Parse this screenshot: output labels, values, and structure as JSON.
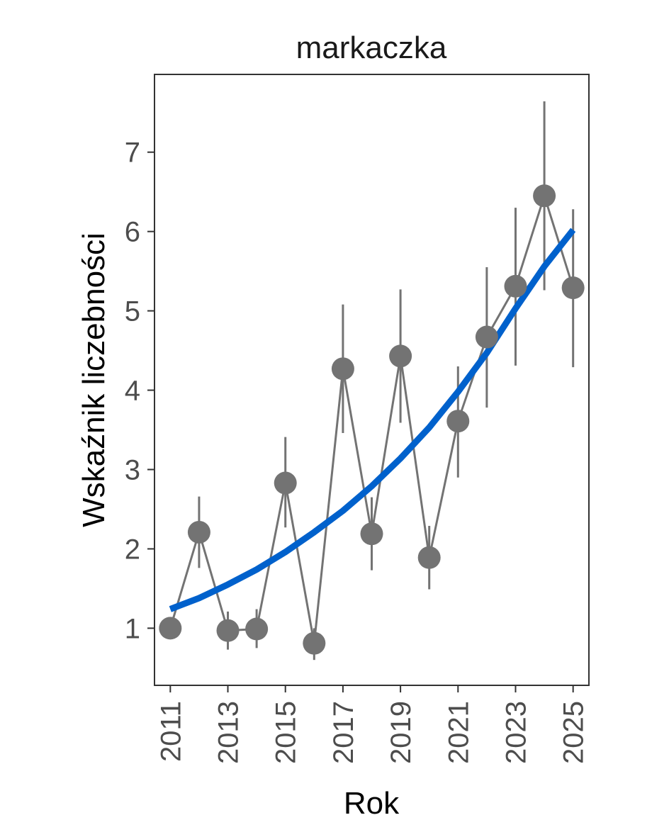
{
  "chart_data": {
    "type": "line",
    "title": "markaczka",
    "xlabel": "Rok",
    "ylabel": "Wskaźnik liczebności",
    "xlim": [
      2010.45,
      2025.55
    ],
    "ylim": [
      0.28,
      7.98
    ],
    "x_ticks": [
      "2011",
      "2013",
      "2015",
      "2017",
      "2019",
      "2021",
      "2023",
      "2025"
    ],
    "y_ticks": [
      "1",
      "2",
      "3",
      "4",
      "5",
      "6",
      "7"
    ],
    "grid": false,
    "legend": "none",
    "series": [
      {
        "x": [
          2011,
          2012,
          2013,
          2014,
          2015,
          2016,
          2017,
          2018,
          2019,
          2020,
          2021,
          2022,
          2023,
          2024,
          2025
        ],
        "y": [
          1.0,
          2.21,
          0.97,
          0.99,
          2.83,
          0.81,
          4.27,
          2.19,
          4.43,
          1.89,
          3.61,
          4.67,
          5.31,
          6.45,
          5.29
        ],
        "lower": [
          null,
          1.76,
          0.73,
          0.75,
          2.27,
          0.6,
          3.46,
          1.73,
          3.59,
          1.49,
          2.9,
          3.78,
          4.31,
          5.26,
          4.29
        ],
        "upper": [
          null,
          2.66,
          1.21,
          1.24,
          3.41,
          1.0,
          5.08,
          2.65,
          5.27,
          2.29,
          4.3,
          5.55,
          6.3,
          7.64,
          6.28
        ]
      },
      {
        "type": "trend",
        "x": [
          2011,
          2012,
          2013,
          2014,
          2015,
          2016,
          2017,
          2018,
          2019,
          2020,
          2021,
          2022,
          2023,
          2024,
          2025
        ],
        "y": [
          1.24,
          1.38,
          1.55,
          1.74,
          1.96,
          2.21,
          2.48,
          2.79,
          3.14,
          3.53,
          3.98,
          4.47,
          5.03,
          5.56,
          6.02
        ]
      }
    ],
    "colors": {
      "points": "#737373",
      "connector": "#737373",
      "error_bars": "#737373",
      "trend": "#0061cc",
      "frame": "#333333",
      "tick_labels": "#4d4d4d"
    }
  }
}
